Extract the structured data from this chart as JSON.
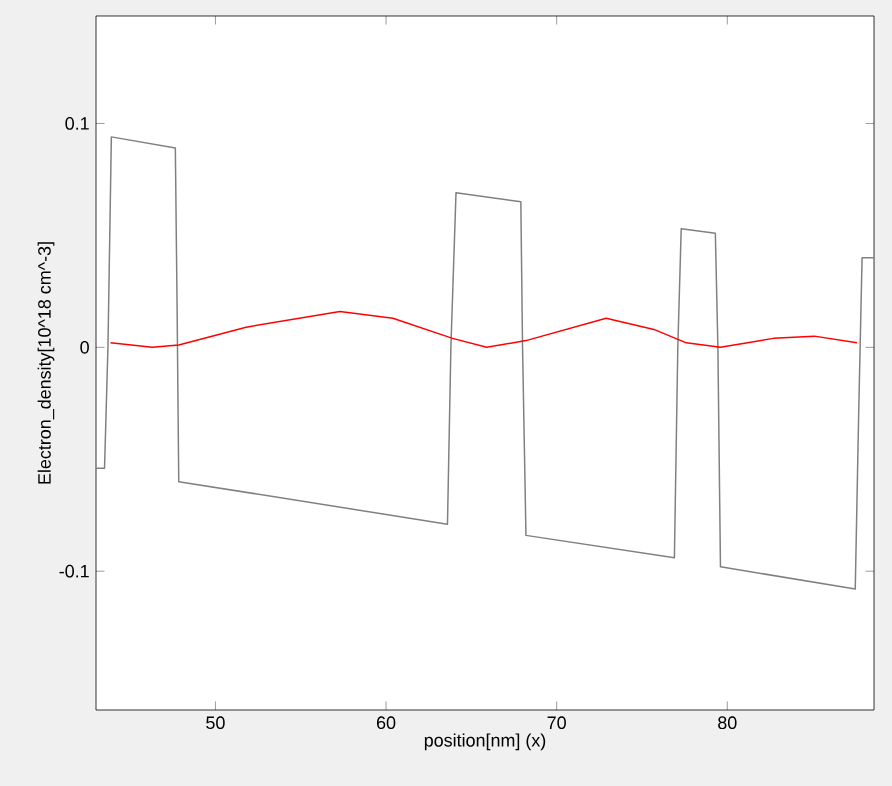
{
  "chart_data": {
    "type": "line",
    "xlabel": "position[nm] (x)",
    "ylabel": "Electron_density[10^18 cm^-3]",
    "xlim": [
      43,
      88.6
    ],
    "ylim": [
      -0.162,
      0.148
    ],
    "xticks": [
      50,
      60,
      70,
      80
    ],
    "yticks": [
      -0.1,
      0,
      0.1
    ],
    "grid": false,
    "marker": "none",
    "line_style": "solid",
    "series": [
      {
        "color": "#808080",
        "x": [
          43,
          43.5,
          43.7,
          43.9,
          47.65,
          47.75,
          47.85,
          63.6,
          63.8,
          64.1,
          67.9,
          68.0,
          68.2,
          76.9,
          77.1,
          77.3,
          79.3,
          79.45,
          79.6,
          87.5,
          87.7,
          87.9,
          88.6
        ],
        "values": [
          -0.054,
          -0.054,
          0.0,
          0.094,
          0.089,
          0.02,
          -0.06,
          -0.079,
          0.0,
          0.069,
          0.065,
          0.0,
          -0.084,
          -0.094,
          0.0,
          0.053,
          0.051,
          0.0,
          -0.098,
          -0.108,
          -0.03,
          0.04,
          0.04
        ]
      },
      {
        "color": "#ff0000",
        "x": [
          43.85,
          46.3,
          47.85,
          51.8,
          57.3,
          60.4,
          63.9,
          65.9,
          68.2,
          72.9,
          75.7,
          77.6,
          79.6,
          82.7,
          85.1,
          87.6
        ],
        "values": [
          0.002,
          0.0,
          0.001,
          0.009,
          0.016,
          0.013,
          0.004,
          0.0,
          0.003,
          0.013,
          0.008,
          0.002,
          0.0,
          0.004,
          0.005,
          0.002
        ]
      }
    ]
  }
}
